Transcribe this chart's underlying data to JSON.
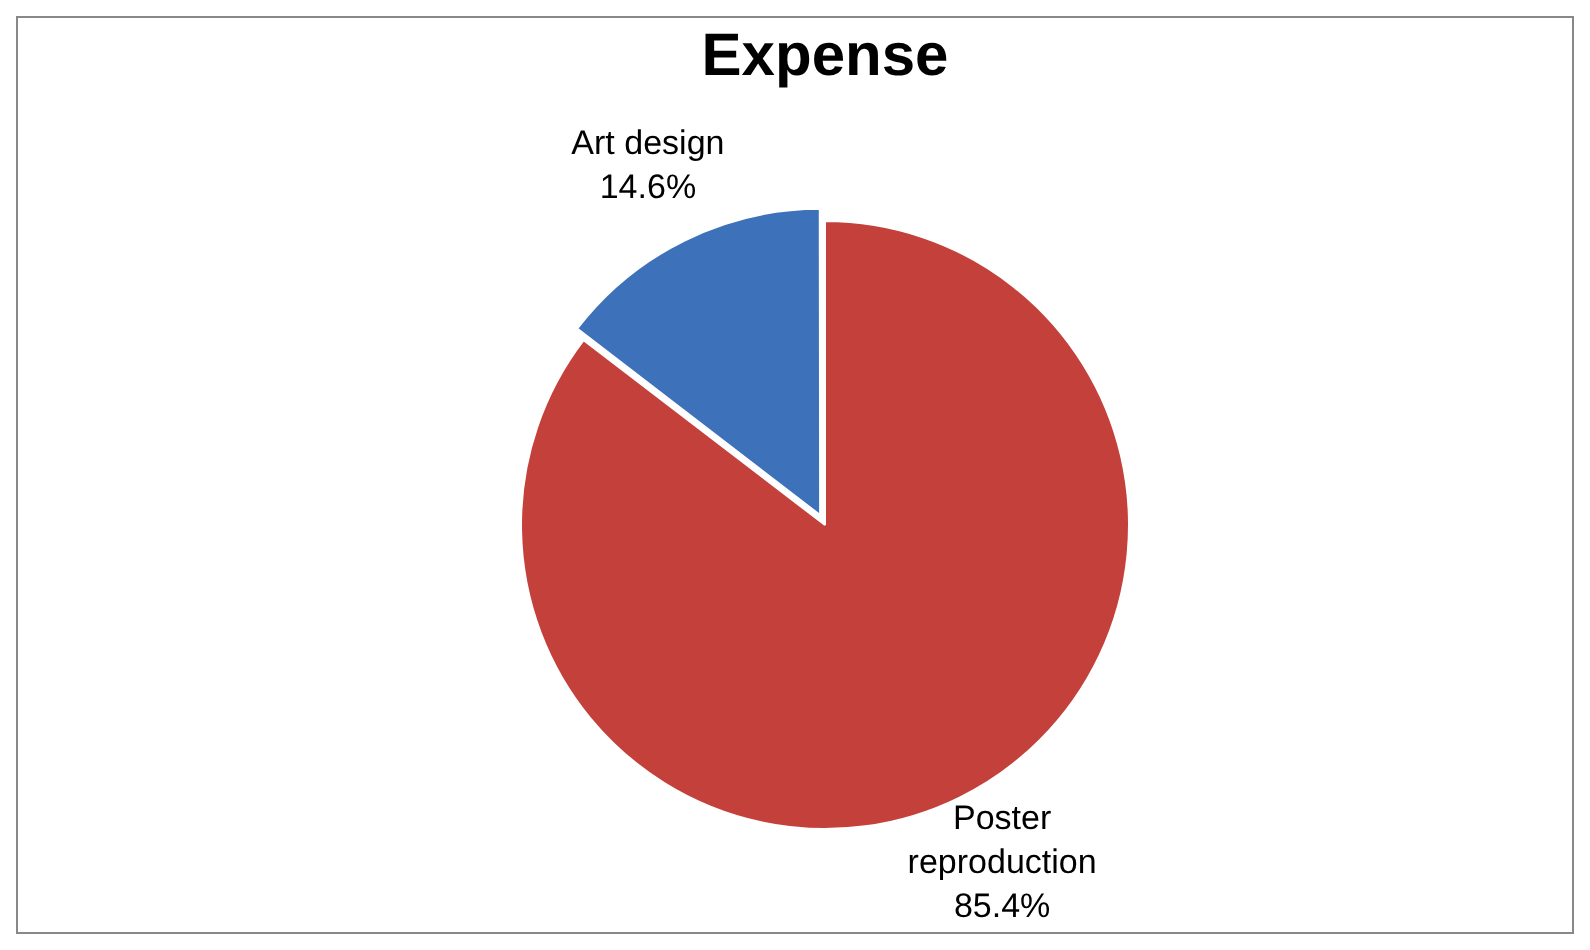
{
  "chart_data": {
    "type": "pie",
    "title": "Expense",
    "categories": [
      "Art design",
      "Poster reproduction"
    ],
    "values": [
      14.6,
      85.4
    ],
    "value_labels": [
      "14.6%",
      "85.4%"
    ],
    "colors": [
      "#3d72bb",
      "#c4403b"
    ],
    "legend": false
  }
}
